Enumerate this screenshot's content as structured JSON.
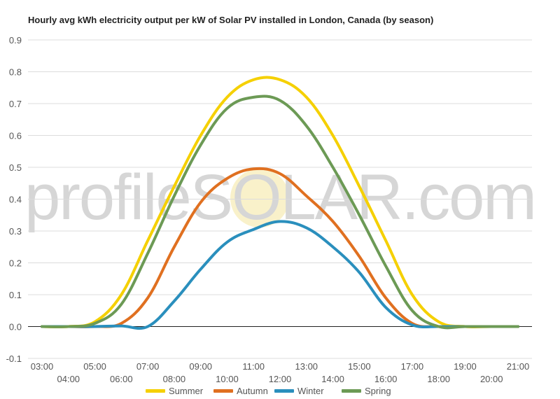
{
  "chart_data": {
    "type": "line",
    "title": "Hourly avg kWh electricity output per kW of Solar PV installed in London, Canada (by season)",
    "xlabel": "",
    "ylabel": "",
    "ylim": [
      -0.1,
      0.9
    ],
    "yticks": [
      "-0.1",
      "0.0",
      "0.1",
      "0.2",
      "0.3",
      "0.4",
      "0.5",
      "0.6",
      "0.7",
      "0.8",
      "0.9"
    ],
    "grid": true,
    "legend_position": "bottom",
    "x_categories": [
      "03:00",
      "04:00",
      "05:00",
      "06:00",
      "07:00",
      "08:00",
      "09:00",
      "10:00",
      "11:00",
      "12:00",
      "13:00",
      "14:00",
      "15:00",
      "16:00",
      "17:00",
      "18:00",
      "19:00",
      "20:00",
      "21:00"
    ],
    "series": [
      {
        "name": "Summer",
        "color": "#F5D000",
        "values": [
          0.0,
          0.0,
          0.015,
          0.1,
          0.27,
          0.44,
          0.6,
          0.72,
          0.775,
          0.775,
          0.72,
          0.6,
          0.44,
          0.27,
          0.1,
          0.015,
          0.0,
          0.0,
          0.0
        ]
      },
      {
        "name": "Autumn",
        "color": "#E07020",
        "values": [
          0.0,
          0.0,
          0.0,
          0.01,
          0.09,
          0.25,
          0.39,
          0.465,
          0.495,
          0.48,
          0.41,
          0.33,
          0.22,
          0.09,
          0.01,
          0.0,
          0.0,
          0.0,
          0.0
        ]
      },
      {
        "name": "Winter",
        "color": "#2A8FBD",
        "values": [
          0.0,
          0.0,
          0.0,
          0.002,
          0.0,
          0.08,
          0.18,
          0.265,
          0.305,
          0.33,
          0.31,
          0.25,
          0.17,
          0.06,
          0.005,
          0.0,
          0.0,
          0.0,
          0.0
        ]
      },
      {
        "name": "Spring",
        "color": "#6C9A55",
        "values": [
          0.0,
          0.0,
          0.01,
          0.07,
          0.23,
          0.41,
          0.57,
          0.685,
          0.72,
          0.71,
          0.63,
          0.5,
          0.35,
          0.19,
          0.05,
          0.0,
          0.0,
          0.0,
          0.0
        ]
      }
    ],
    "watermark": "profileSOLAR.com"
  }
}
